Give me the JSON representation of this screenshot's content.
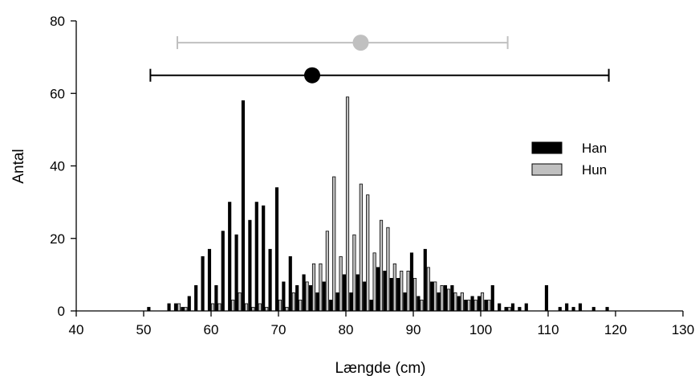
{
  "chart_data": {
    "type": "bar",
    "xlabel": "Længde (cm)",
    "ylabel": "Antal",
    "xlim": [
      40,
      130
    ],
    "ylim": [
      0,
      80
    ],
    "xticks": [
      40,
      50,
      60,
      70,
      80,
      90,
      100,
      110,
      120,
      130
    ],
    "yticks": [
      0,
      20,
      40,
      60,
      80
    ],
    "grid": false,
    "legend_position": "right",
    "series": [
      {
        "name": "Han",
        "color": "#000000",
        "x": [
          51,
          54,
          55,
          56,
          57,
          58,
          59,
          60,
          61,
          62,
          63,
          64,
          65,
          66,
          67,
          68,
          69,
          70,
          71,
          72,
          73,
          74,
          75,
          76,
          77,
          78,
          79,
          80,
          81,
          82,
          83,
          84,
          85,
          86,
          87,
          88,
          89,
          90,
          91,
          92,
          93,
          94,
          95,
          96,
          97,
          98,
          99,
          100,
          101,
          102,
          103,
          104,
          105,
          106,
          107,
          110,
          112,
          113,
          114,
          115,
          117,
          119
        ],
        "y": [
          1,
          2,
          2,
          1,
          4,
          7,
          15,
          17,
          7,
          22,
          30,
          21,
          58,
          25,
          30,
          29,
          17,
          34,
          8,
          15,
          7,
          10,
          7,
          5,
          8,
          3,
          5,
          10,
          5,
          10,
          8,
          3,
          12,
          11,
          9,
          9,
          5,
          16,
          4,
          17,
          8,
          5,
          7,
          7,
          4,
          3,
          4,
          4,
          3,
          7,
          2,
          1,
          2,
          1,
          2,
          7,
          1,
          2,
          1,
          2,
          1,
          1
        ]
      },
      {
        "name": "Hun",
        "color": "#c0c0c0",
        "x": [
          55,
          56,
          60,
          61,
          63,
          64,
          65,
          66,
          67,
          68,
          70,
          71,
          72,
          73,
          74,
          75,
          76,
          77,
          78,
          79,
          80,
          81,
          82,
          83,
          84,
          85,
          86,
          87,
          88,
          89,
          90,
          91,
          92,
          93,
          94,
          95,
          96,
          97,
          98,
          99,
          100,
          101,
          104
        ],
        "y": [
          2,
          1,
          2,
          2,
          3,
          5,
          2,
          1,
          2,
          1,
          3,
          1,
          5,
          3,
          8,
          13,
          13,
          22,
          37,
          15,
          59,
          21,
          35,
          32,
          16,
          25,
          23,
          13,
          11,
          11,
          9,
          3,
          12,
          8,
          7,
          6,
          5,
          5,
          3,
          3,
          5,
          3,
          1
        ]
      }
    ],
    "error_bars": [
      {
        "series": "Han",
        "mean": 75,
        "min": 51,
        "max": 119,
        "y": 65,
        "color": "#000000"
      },
      {
        "series": "Hun",
        "mean": 82.2,
        "min": 55,
        "max": 104,
        "y": 74,
        "color": "#c0c0c0"
      }
    ]
  }
}
